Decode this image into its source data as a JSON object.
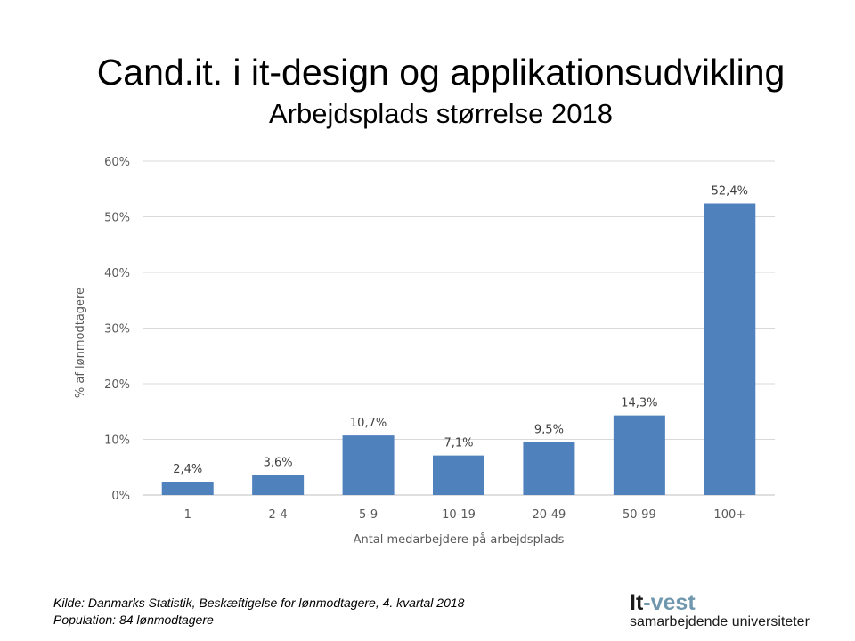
{
  "chart_data": {
    "type": "bar",
    "title": "Cand.it. i it-design og applikationsudvikling",
    "subtitle": "Arbejdsplads størrelse 2018",
    "xlabel": "Antal medarbejdere på arbejdsplads",
    "ylabel": "% af lønmodtagere",
    "categories": [
      "1",
      "2-4",
      "5-9",
      "10-19",
      "20-49",
      "50-99",
      "100+"
    ],
    "values": [
      2.4,
      3.6,
      10.7,
      7.1,
      9.5,
      14.3,
      52.4
    ],
    "data_labels": [
      "2,4%",
      "3,6%",
      "10,7%",
      "7,1%",
      "9,5%",
      "14,3%",
      "52,4%"
    ],
    "ylim": [
      0,
      60
    ],
    "yticks": [
      "0%",
      "10%",
      "20%",
      "30%",
      "40%",
      "50%",
      "60%"
    ],
    "grid": true,
    "legend": "none",
    "bar_color": "#4f81bd"
  },
  "footer": {
    "source": "Kilde: Danmarks Statistik, Beskæftigelse for lønmodtagere, 4. kvartal 2018",
    "population": "Population: 84 lønmodtagere"
  },
  "logo": {
    "part1": "It",
    "part2": "-vest",
    "tagline": "samarbejdende universiteter"
  }
}
